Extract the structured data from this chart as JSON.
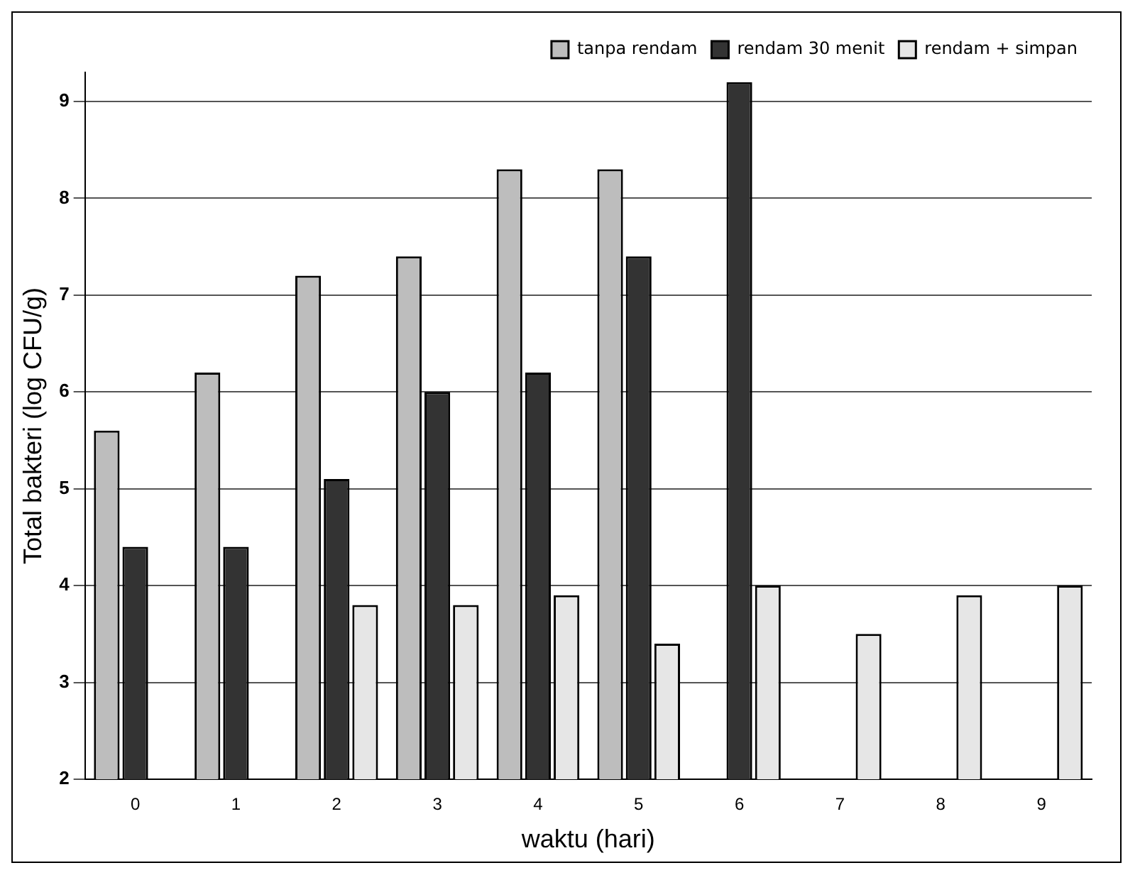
{
  "chart_data": {
    "type": "bar",
    "xlabel": "waktu (hari)",
    "ylabel": "Total bakteri (log CFU/g)",
    "categories": [
      "0",
      "1",
      "2",
      "3",
      "4",
      "5",
      "6",
      "7",
      "8",
      "9"
    ],
    "series": [
      {
        "name": "tanpa rendam",
        "color": "#bdbdbd",
        "values": [
          5.6,
          6.2,
          7.2,
          7.4,
          8.3,
          8.3,
          null,
          null,
          null,
          null
        ]
      },
      {
        "name": "rendam 30 menit",
        "color": "#333333",
        "values": [
          4.4,
          4.4,
          5.1,
          6.0,
          6.2,
          7.4,
          9.2,
          null,
          null,
          null
        ]
      },
      {
        "name": "rendam + simpan",
        "color": "#e6e6e6",
        "values": [
          null,
          null,
          3.8,
          3.8,
          3.9,
          3.4,
          4.0,
          3.5,
          3.9,
          4.0
        ]
      }
    ],
    "ylim": [
      2,
      9.3
    ],
    "yticks": [
      2,
      3,
      4,
      5,
      6,
      7,
      8,
      9
    ],
    "grid": "y",
    "legend": "top right"
  }
}
